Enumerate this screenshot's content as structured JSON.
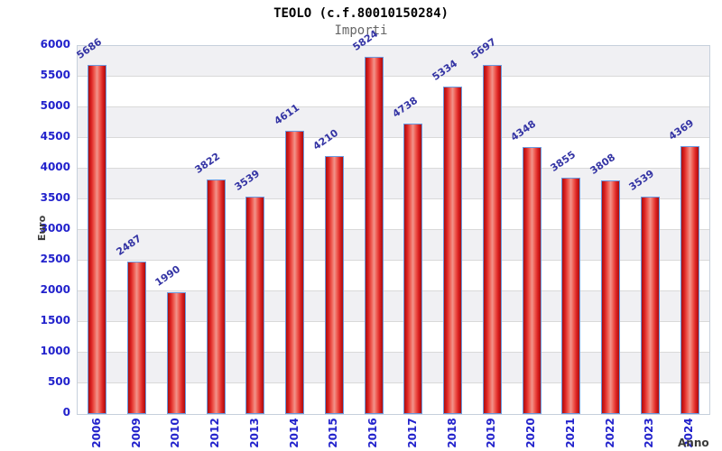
{
  "chart_data": {
    "type": "bar",
    "title": "TEOLO (c.f.80010150284)",
    "subtitle": "Importi",
    "xlabel": "Anno",
    "ylabel": "Euro",
    "categories": [
      "2006",
      "2009",
      "2010",
      "2012",
      "2013",
      "2014",
      "2015",
      "2016",
      "2017",
      "2018",
      "2019",
      "2020",
      "2021",
      "2022",
      "2023",
      "2024"
    ],
    "values": [
      5686,
      2487,
      1990,
      3822,
      3539,
      4611,
      4210,
      5824,
      4738,
      5334,
      5697,
      4348,
      3855,
      3808,
      3539,
      4369
    ],
    "ylim": [
      0,
      6000
    ],
    "ytick_step": 500,
    "grid": true,
    "legend": false,
    "band_fill": true,
    "value_labels_rotated_deg": -35,
    "x_labels_rotated_deg": -90,
    "colors": {
      "bar_fill_edge": "#a81010",
      "bar_fill_mid": "#da1f1f",
      "bar_fill_highlight": "#f1948c",
      "bar_border": "#6b9ae0",
      "value_label": "#3434a4",
      "tick_label": "#2222cc",
      "axis_title": "#3a3a3a",
      "title_color": "#000000",
      "subtitle_color": "#666666",
      "band_gray": "#f0f0f3",
      "band_white": "#ffffff",
      "gridline": "#d9d9d9",
      "plot_border": "#c6d0dc",
      "background": "#ffffff"
    }
  }
}
